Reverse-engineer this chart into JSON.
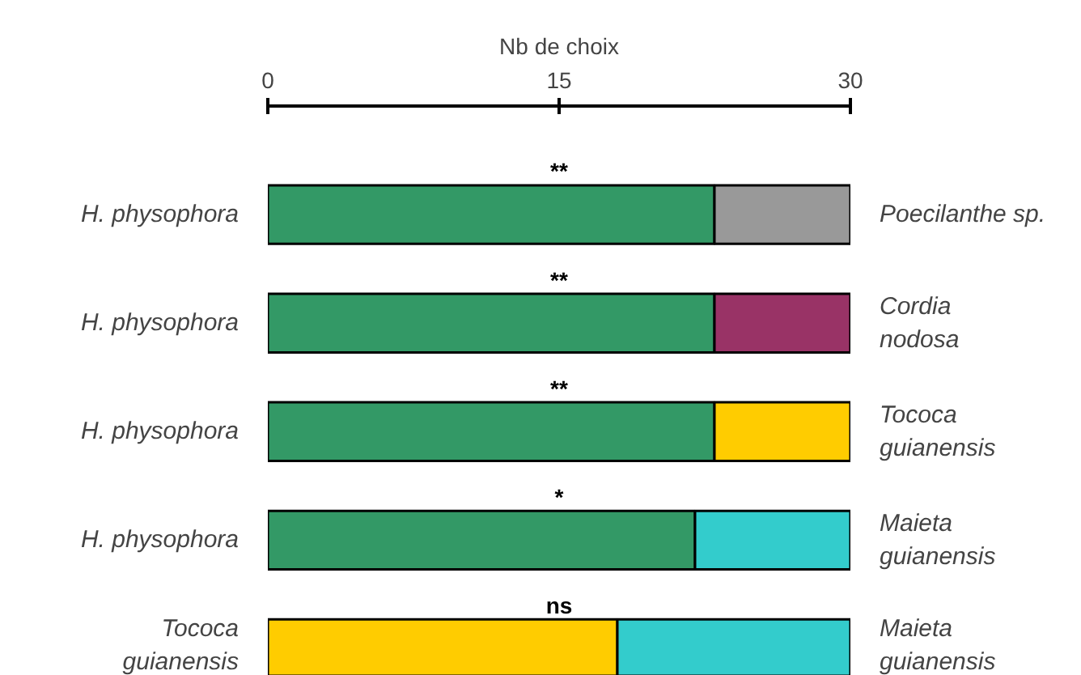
{
  "chart_data": {
    "type": "bar",
    "orientation": "horizontal",
    "stacked": true,
    "xlabel": "Nb de choix",
    "xlim": [
      0,
      30
    ],
    "xticks": [
      0,
      15,
      30
    ],
    "grid": false,
    "categories": [
      "H. physophora",
      "H. physophora",
      "H. physophora",
      "H. physophora",
      "Tococa\nguianensis"
    ],
    "y2_categories": [
      "Poecilanthe sp.",
      "Cordia\nnodosa",
      "Tococa\nguianensis",
      "Maieta\nguianensis",
      "Maieta\nguianensis"
    ],
    "series": [
      {
        "colors": [
          "#339966",
          "#339966",
          "#339966",
          "#339966",
          "#ffcc00"
        ],
        "values": [
          23,
          23,
          23,
          22,
          18
        ]
      },
      {
        "colors": [
          "#999999",
          "#993366",
          "#ffcc00",
          "#33cccc",
          "#33cccc"
        ],
        "values": [
          7,
          7,
          7,
          8,
          12
        ]
      }
    ],
    "annotations": [
      "**",
      "**",
      "**",
      "*",
      "ns"
    ]
  }
}
